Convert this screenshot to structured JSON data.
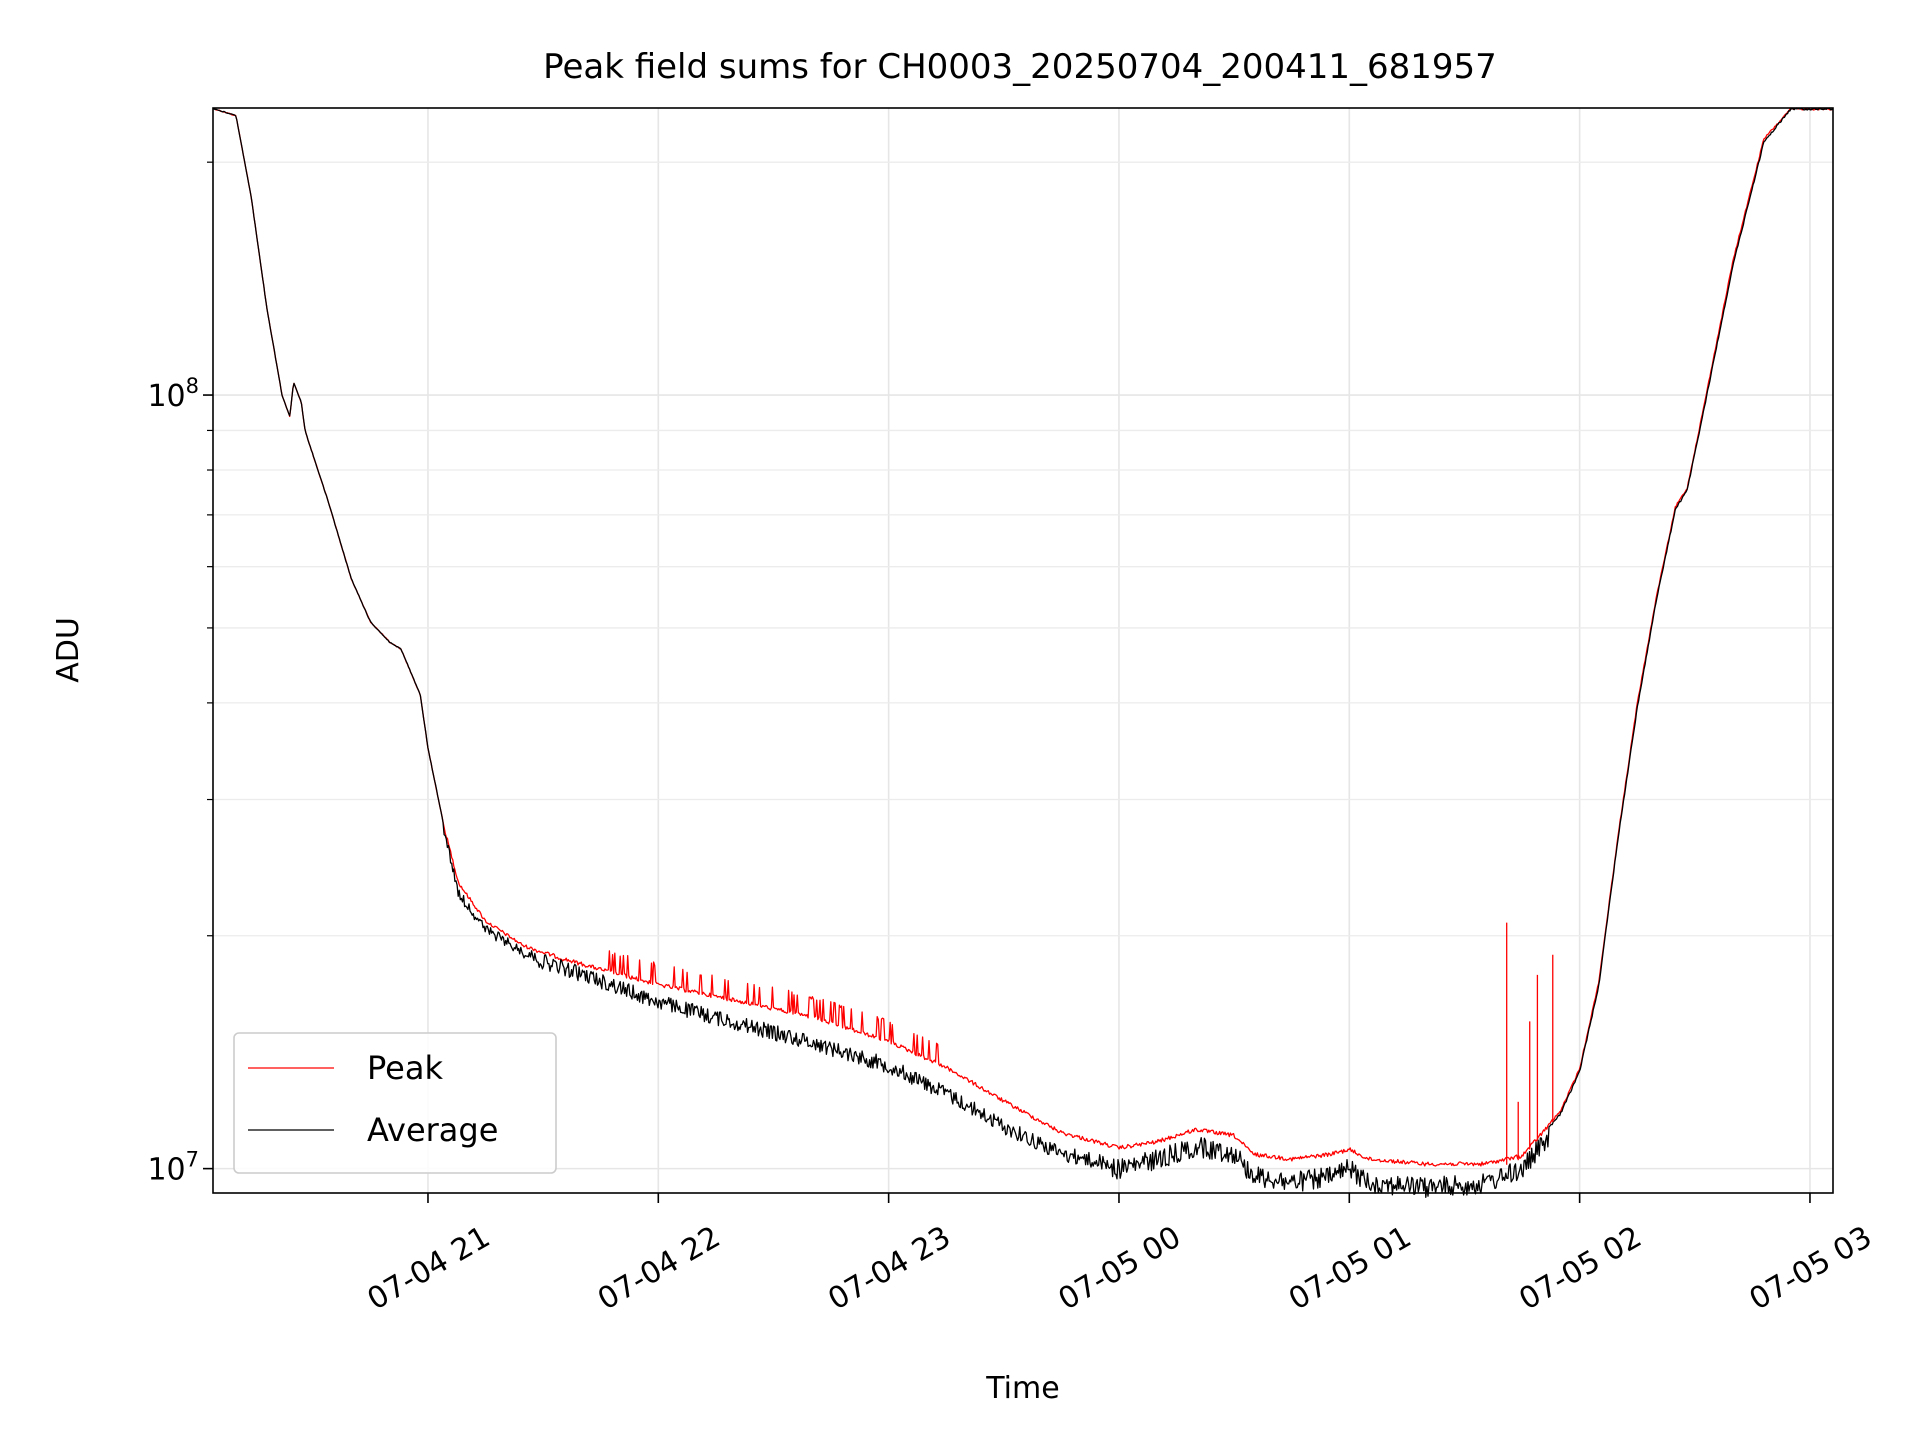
{
  "chart_data": {
    "type": "line",
    "title": "Peak field sums for CH0003_20250704_200411_681957",
    "xlabel": "Time",
    "ylabel": "ADU",
    "yscale": "log",
    "grid": true,
    "legend_position": "lower-left",
    "xlim": [
      "2025-07-04 20:04",
      "2025-07-05 03:06"
    ],
    "ylim": [
      9300000,
      235000000
    ],
    "x_ticks": [
      {
        "t": "2025-07-04 21:00",
        "label": "07-04 21"
      },
      {
        "t": "2025-07-04 22:00",
        "label": "07-04 22"
      },
      {
        "t": "2025-07-04 23:00",
        "label": "07-04 23"
      },
      {
        "t": "2025-07-05 00:00",
        "label": "07-05 00"
      },
      {
        "t": "2025-07-05 01:00",
        "label": "07-05 01"
      },
      {
        "t": "2025-07-05 02:00",
        "label": "07-05 02"
      },
      {
        "t": "2025-07-05 03:00",
        "label": "07-05 03"
      }
    ],
    "y_major_ticks": [
      {
        "value": 10000000,
        "base": "10",
        "exp": "7"
      },
      {
        "value": 100000000,
        "base": "10",
        "exp": "8"
      }
    ],
    "y_minor_ticks": [
      20000000,
      30000000,
      40000000,
      50000000,
      60000000,
      70000000,
      80000000,
      90000000,
      200000000
    ],
    "series": [
      {
        "name": "Peak",
        "color": "#ff0000",
        "points": [
          [
            "2025-07-04 20:04",
            235000000
          ],
          [
            "2025-07-04 20:10",
            230000000
          ],
          [
            "2025-07-04 20:14",
            180000000
          ],
          [
            "2025-07-04 20:18",
            130000000
          ],
          [
            "2025-07-04 20:22",
            100000000
          ],
          [
            "2025-07-04 20:24",
            94000000
          ],
          [
            "2025-07-04 20:25",
            104000000
          ],
          [
            "2025-07-04 20:27",
            98000000
          ],
          [
            "2025-07-04 20:28",
            90000000
          ],
          [
            "2025-07-04 20:34",
            73000000
          ],
          [
            "2025-07-04 20:40",
            58000000
          ],
          [
            "2025-07-04 20:45",
            51000000
          ],
          [
            "2025-07-04 20:50",
            48000000
          ],
          [
            "2025-07-04 20:53",
            47000000
          ],
          [
            "2025-07-04 20:58",
            41000000
          ],
          [
            "2025-07-04 21:00",
            35000000
          ],
          [
            "2025-07-04 21:04",
            28000000
          ],
          [
            "2025-07-04 21:08",
            23500000
          ],
          [
            "2025-07-04 21:15",
            21000000
          ],
          [
            "2025-07-04 21:25",
            19500000
          ],
          [
            "2025-07-04 21:35",
            18800000
          ],
          [
            "2025-07-04 21:45",
            18200000
          ],
          [
            "2025-07-04 22:00",
            17400000
          ],
          [
            "2025-07-04 22:20",
            16600000
          ],
          [
            "2025-07-04 22:40",
            15800000
          ],
          [
            "2025-07-04 23:00",
            14700000
          ],
          [
            "2025-07-04 23:15",
            13600000
          ],
          [
            "2025-07-04 23:30",
            12300000
          ],
          [
            "2025-07-04 23:45",
            11200000
          ],
          [
            "2025-07-05 00:00",
            10700000
          ],
          [
            "2025-07-05 00:10",
            10900000
          ],
          [
            "2025-07-05 00:20",
            11300000
          ],
          [
            "2025-07-05 00:30",
            11100000
          ],
          [
            "2025-07-05 00:35",
            10500000
          ],
          [
            "2025-07-05 00:45",
            10350000
          ],
          [
            "2025-07-05 00:55",
            10500000
          ],
          [
            "2025-07-05 01:00",
            10650000
          ],
          [
            "2025-07-05 01:05",
            10350000
          ],
          [
            "2025-07-05 01:20",
            10200000
          ],
          [
            "2025-07-05 01:35",
            10200000
          ],
          [
            "2025-07-05 01:45",
            10450000
          ],
          [
            "2025-07-05 01:55",
            11900000
          ],
          [
            "2025-07-05 02:00",
            13500000
          ],
          [
            "2025-07-05 02:05",
            17500000
          ],
          [
            "2025-07-05 02:10",
            27000000
          ],
          [
            "2025-07-05 02:15",
            40000000
          ],
          [
            "2025-07-05 02:20",
            55000000
          ],
          [
            "2025-07-05 02:25",
            72000000
          ],
          [
            "2025-07-05 02:28",
            76000000
          ],
          [
            "2025-07-05 02:32",
            95000000
          ],
          [
            "2025-07-05 02:40",
            150000000
          ],
          [
            "2025-07-05 02:48",
            215000000
          ],
          [
            "2025-07-05 02:55",
            235000000
          ],
          [
            "2025-07-05 03:06",
            235000000
          ]
        ]
      },
      {
        "name": "Average",
        "color": "#000000",
        "points": [
          [
            "2025-07-04 20:04",
            235000000
          ],
          [
            "2025-07-04 20:10",
            230000000
          ],
          [
            "2025-07-04 20:14",
            180000000
          ],
          [
            "2025-07-04 20:18",
            130000000
          ],
          [
            "2025-07-04 20:22",
            100000000
          ],
          [
            "2025-07-04 20:24",
            94000000
          ],
          [
            "2025-07-04 20:25",
            104000000
          ],
          [
            "2025-07-04 20:27",
            98000000
          ],
          [
            "2025-07-04 20:28",
            90000000
          ],
          [
            "2025-07-04 20:34",
            73000000
          ],
          [
            "2025-07-04 20:40",
            58000000
          ],
          [
            "2025-07-04 20:45",
            51000000
          ],
          [
            "2025-07-04 20:50",
            48000000
          ],
          [
            "2025-07-04 20:53",
            47000000
          ],
          [
            "2025-07-04 20:58",
            41000000
          ],
          [
            "2025-07-04 21:00",
            35000000
          ],
          [
            "2025-07-04 21:04",
            28000000
          ],
          [
            "2025-07-04 21:08",
            23000000
          ],
          [
            "2025-07-04 21:15",
            20700000
          ],
          [
            "2025-07-04 21:25",
            19300000
          ],
          [
            "2025-07-04 21:35",
            18600000
          ],
          [
            "2025-07-04 21:45",
            17900000
          ],
          [
            "2025-07-04 22:00",
            16800000
          ],
          [
            "2025-07-04 22:20",
            15800000
          ],
          [
            "2025-07-04 22:40",
            14900000
          ],
          [
            "2025-07-04 23:00",
            13900000
          ],
          [
            "2025-07-04 23:15",
            12800000
          ],
          [
            "2025-07-04 23:30",
            11600000
          ],
          [
            "2025-07-04 23:45",
            10700000
          ],
          [
            "2025-07-05 00:00",
            10300000
          ],
          [
            "2025-07-05 00:10",
            10600000
          ],
          [
            "2025-07-05 00:20",
            11000000
          ],
          [
            "2025-07-05 00:30",
            10800000
          ],
          [
            "2025-07-05 00:35",
            10100000
          ],
          [
            "2025-07-05 00:45",
            9900000
          ],
          [
            "2025-07-05 00:55",
            10050000
          ],
          [
            "2025-07-05 01:00",
            10300000
          ],
          [
            "2025-07-05 01:05",
            9900000
          ],
          [
            "2025-07-05 01:20",
            9750000
          ],
          [
            "2025-07-05 01:35",
            9850000
          ],
          [
            "2025-07-05 01:45",
            10300000
          ],
          [
            "2025-07-05 01:55",
            11800000
          ],
          [
            "2025-07-05 02:00",
            13400000
          ],
          [
            "2025-07-05 02:05",
            17300000
          ],
          [
            "2025-07-05 02:10",
            26800000
          ],
          [
            "2025-07-05 02:15",
            39500000
          ],
          [
            "2025-07-05 02:20",
            54500000
          ],
          [
            "2025-07-05 02:25",
            71500000
          ],
          [
            "2025-07-05 02:28",
            75500000
          ],
          [
            "2025-07-05 02:32",
            94000000
          ],
          [
            "2025-07-05 02:40",
            148000000
          ],
          [
            "2025-07-05 02:48",
            213000000
          ],
          [
            "2025-07-05 02:55",
            235000000
          ],
          [
            "2025-07-05 03:06",
            235000000
          ]
        ]
      }
    ],
    "peak_spikes": [
      [
        "2025-07-05 01:41",
        20800000
      ],
      [
        "2025-07-05 01:44",
        12200000
      ],
      [
        "2025-07-05 01:47",
        15500000
      ],
      [
        "2025-07-05 01:49",
        17800000
      ],
      [
        "2025-07-05 01:53",
        18900000
      ]
    ]
  }
}
